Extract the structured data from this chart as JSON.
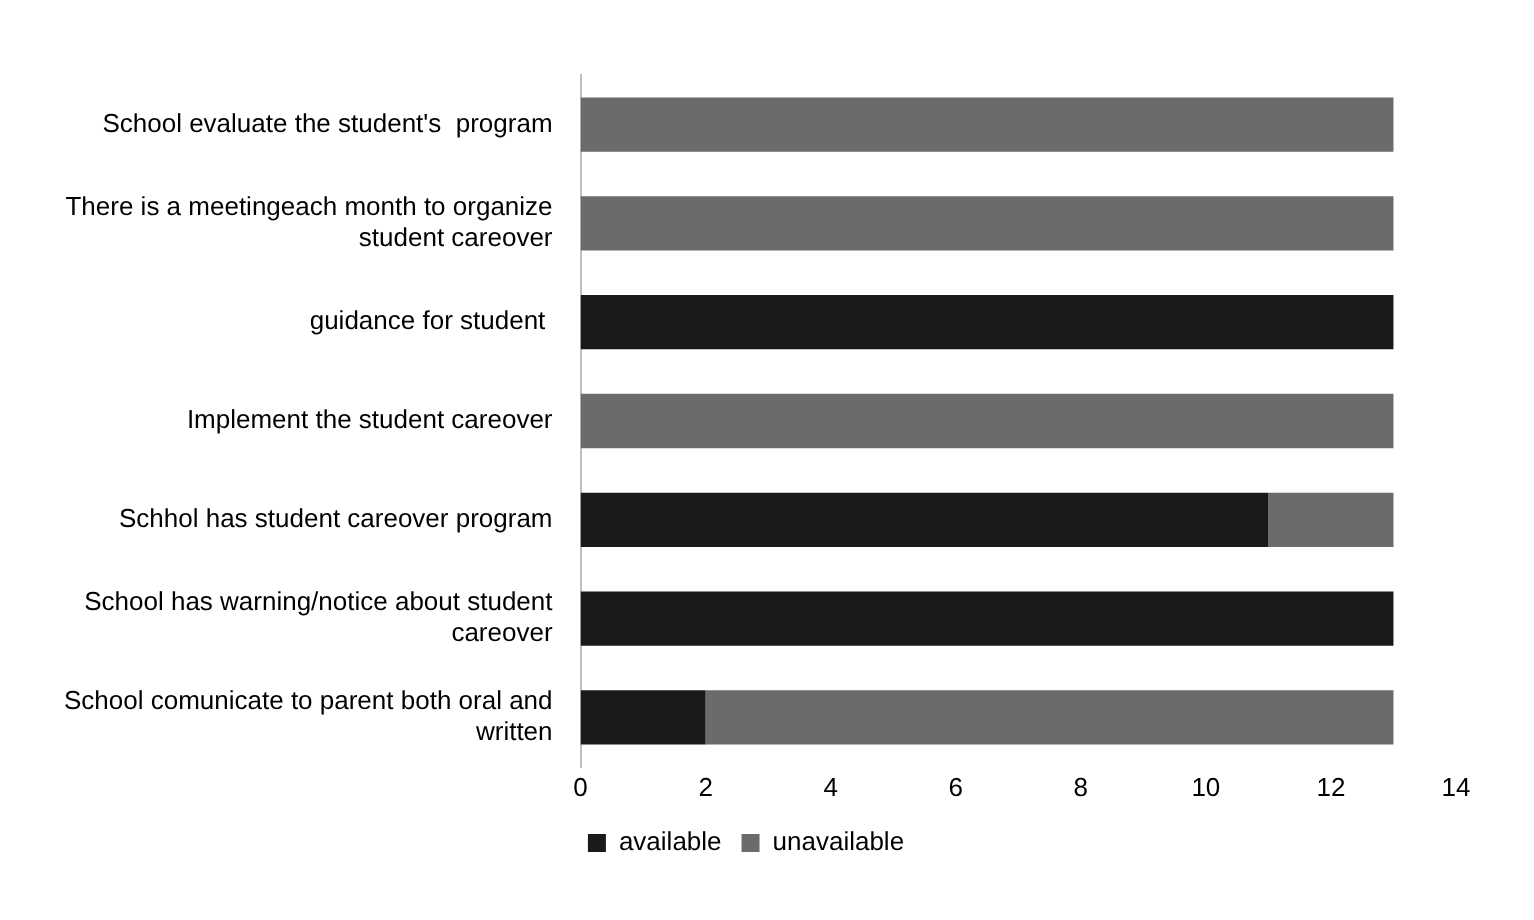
{
  "chart_data": {
    "type": "bar",
    "orientation": "horizontal",
    "stacked": true,
    "categories": [
      "School evaluate the student's  program",
      "There is a meetingeach month to organize student careover",
      "guidance for student ",
      "Implement the student careover",
      "Schhol has student careover program",
      "School has warning/notice about student careover",
      "School comunicate to parent both oral and written"
    ],
    "series": [
      {
        "name": "available",
        "color": "#1a1a1a",
        "values": [
          0,
          0,
          13,
          0,
          11,
          13,
          2
        ]
      },
      {
        "name": "unavailable",
        "color": "#6b6b6b",
        "values": [
          13,
          13,
          0,
          13,
          2,
          0,
          11
        ]
      }
    ],
    "xlim": [
      0,
      14
    ],
    "xticks": [
      0,
      2,
      4,
      6,
      8,
      10,
      12,
      14
    ],
    "grid": false,
    "legend": "bottom"
  }
}
